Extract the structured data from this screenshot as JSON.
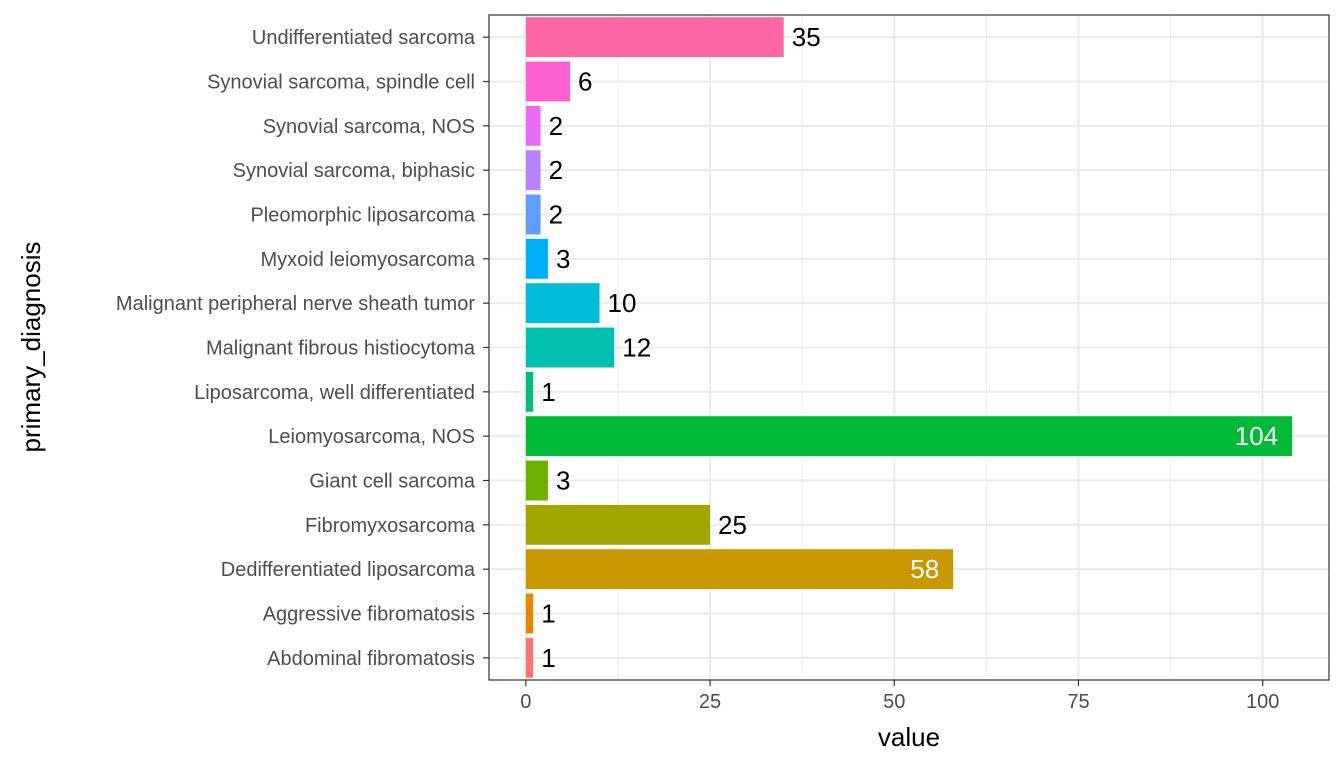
{
  "chart_data": {
    "type": "bar",
    "orientation": "horizontal",
    "xlabel": "value",
    "ylabel": "primary_diagnosis",
    "xlim": [
      -5,
      109
    ],
    "xticks": [
      0,
      25,
      50,
      75,
      100
    ],
    "grid": true,
    "legend": "none",
    "categories": [
      "Abdominal fibromatosis",
      "Aggressive fibromatosis",
      "Dedifferentiated liposarcoma",
      "Fibromyxosarcoma",
      "Giant cell sarcoma",
      "Leiomyosarcoma, NOS",
      "Liposarcoma, well differentiated",
      "Malignant fibrous histiocytoma",
      "Malignant peripheral nerve sheath tumor",
      "Myxoid leiomyosarcoma",
      "Pleomorphic liposarcoma",
      "Synovial sarcoma, biphasic",
      "Synovial sarcoma, NOS",
      "Synovial sarcoma, spindle cell",
      "Undifferentiated sarcoma"
    ],
    "values": [
      1,
      1,
      58,
      25,
      3,
      104,
      1,
      12,
      10,
      3,
      2,
      2,
      2,
      6,
      35
    ],
    "colors": [
      "#F8766D",
      "#E58700",
      "#C99800",
      "#A3A500",
      "#6BB100",
      "#00BA38",
      "#00BF7D",
      "#00C0AF",
      "#00BCD8",
      "#00B0F6",
      "#619CFF",
      "#B983FF",
      "#E76BF3",
      "#FD61D1",
      "#FF67A4"
    ],
    "inside_label_color": "#ffffff",
    "outside_label_color": "#000000"
  }
}
